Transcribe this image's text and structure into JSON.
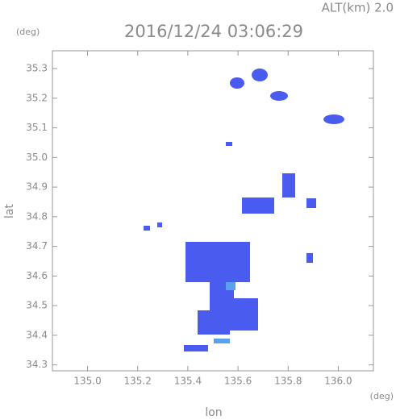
{
  "chart_data": {
    "type": "map",
    "title": "2016/12/24 03:06:29",
    "altitude_label": "ALT(km) 2.0",
    "y_unit": "(deg)",
    "x_unit": "(deg)",
    "x_label": "lon",
    "y_label": "lat",
    "xlim": [
      134.86,
      136.14
    ],
    "ylim": [
      34.28,
      35.36
    ],
    "xticks": [
      {
        "value": 135,
        "label": "135.0"
      },
      135.2,
      135.4,
      135.6,
      135.8,
      {
        "value": 136,
        "label": "136.0"
      }
    ],
    "yticks": [
      34.3,
      34.4,
      34.5,
      34.6,
      34.7,
      34.8,
      34.9,
      {
        "value": 35,
        "label": "35.0"
      },
      35.1,
      35.2,
      35.3
    ]
  }
}
